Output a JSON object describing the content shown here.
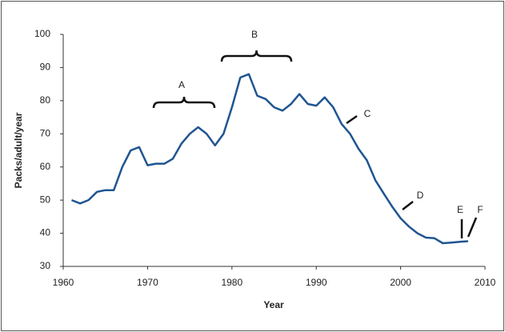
{
  "chart_data": {
    "type": "line",
    "xlabel": "Year",
    "ylabel": "Packs/adult/year",
    "x": [
      1961,
      1962,
      1963,
      1964,
      1965,
      1966,
      1967,
      1968,
      1969,
      1970,
      1971,
      1972,
      1973,
      1974,
      1975,
      1976,
      1977,
      1978,
      1979,
      1980,
      1981,
      1982,
      1983,
      1984,
      1985,
      1986,
      1987,
      1988,
      1989,
      1990,
      1991,
      1992,
      1993,
      1994,
      1995,
      1996,
      1997,
      1998,
      1999,
      2000,
      2001,
      2002,
      2003,
      2004,
      2005,
      2006,
      2007,
      2008
    ],
    "series": [
      {
        "color": "#1f5591",
        "values": [
          50,
          49,
          50,
          52.5,
          53,
          53,
          60,
          65,
          66,
          60.5,
          61,
          61,
          62.5,
          67,
          70,
          72,
          70,
          66.5,
          70,
          78,
          87,
          88,
          81.5,
          80.5,
          78,
          77,
          79,
          82,
          79,
          78.5,
          81,
          78,
          73,
          70,
          65.5,
          62,
          56,
          52,
          48,
          44.5,
          42,
          40,
          38.7,
          38.5,
          37,
          37.2,
          37.4,
          37.6
        ]
      }
    ],
    "xlim": [
      1960,
      2010
    ],
    "xticks": [
      1960,
      1970,
      1980,
      1990,
      2000,
      2010
    ],
    "ylim": [
      30,
      100
    ],
    "yticks": [
      30,
      40,
      50,
      60,
      70,
      80,
      90,
      100
    ],
    "annotations": [
      "A",
      "B",
      "C",
      "D",
      "E",
      "F"
    ]
  }
}
